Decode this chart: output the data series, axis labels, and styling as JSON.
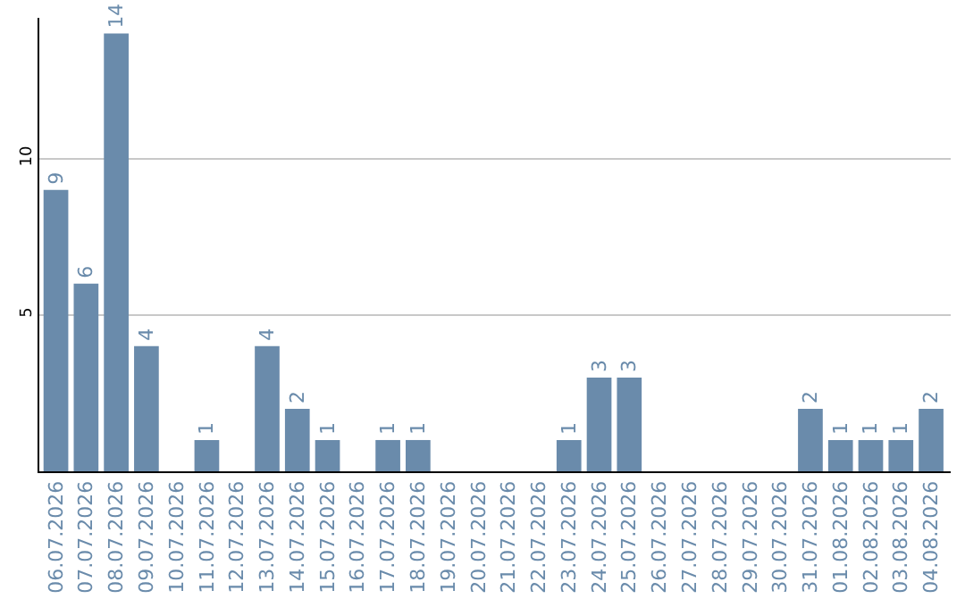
{
  "chart_data": {
    "type": "bar",
    "categories": [
      "06.07.2026",
      "07.07.2026",
      "08.07.2026",
      "09.07.2026",
      "10.07.2026",
      "11.07.2026",
      "12.07.2026",
      "13.07.2026",
      "14.07.2026",
      "15.07.2026",
      "16.07.2026",
      "17.07.2026",
      "18.07.2026",
      "19.07.2026",
      "20.07.2026",
      "21.07.2026",
      "22.07.2026",
      "23.07.2026",
      "24.07.2026",
      "25.07.2026",
      "26.07.2026",
      "27.07.2026",
      "28.07.2026",
      "29.07.2026",
      "30.07.2026",
      "31.07.2026",
      "01.08.2026",
      "02.08.2026",
      "03.08.2026",
      "04.08.2026"
    ],
    "values": [
      9,
      6,
      14,
      4,
      0,
      1,
      0,
      4,
      2,
      1,
      0,
      1,
      1,
      0,
      0,
      0,
      0,
      1,
      3,
      3,
      0,
      0,
      0,
      0,
      0,
      2,
      1,
      1,
      1,
      2
    ],
    "value_labels": [
      "9",
      "6",
      "14",
      "4",
      null,
      "1",
      null,
      "4",
      "2",
      "1",
      null,
      "1",
      "1",
      null,
      null,
      null,
      null,
      "1",
      "3",
      "3",
      null,
      null,
      null,
      null,
      null,
      "2",
      "1",
      "1",
      "1",
      "2"
    ],
    "color": "#6a8bab",
    "ylim": [
      0,
      14.5
    ],
    "yticks": [
      5,
      10
    ],
    "grid": "y"
  }
}
